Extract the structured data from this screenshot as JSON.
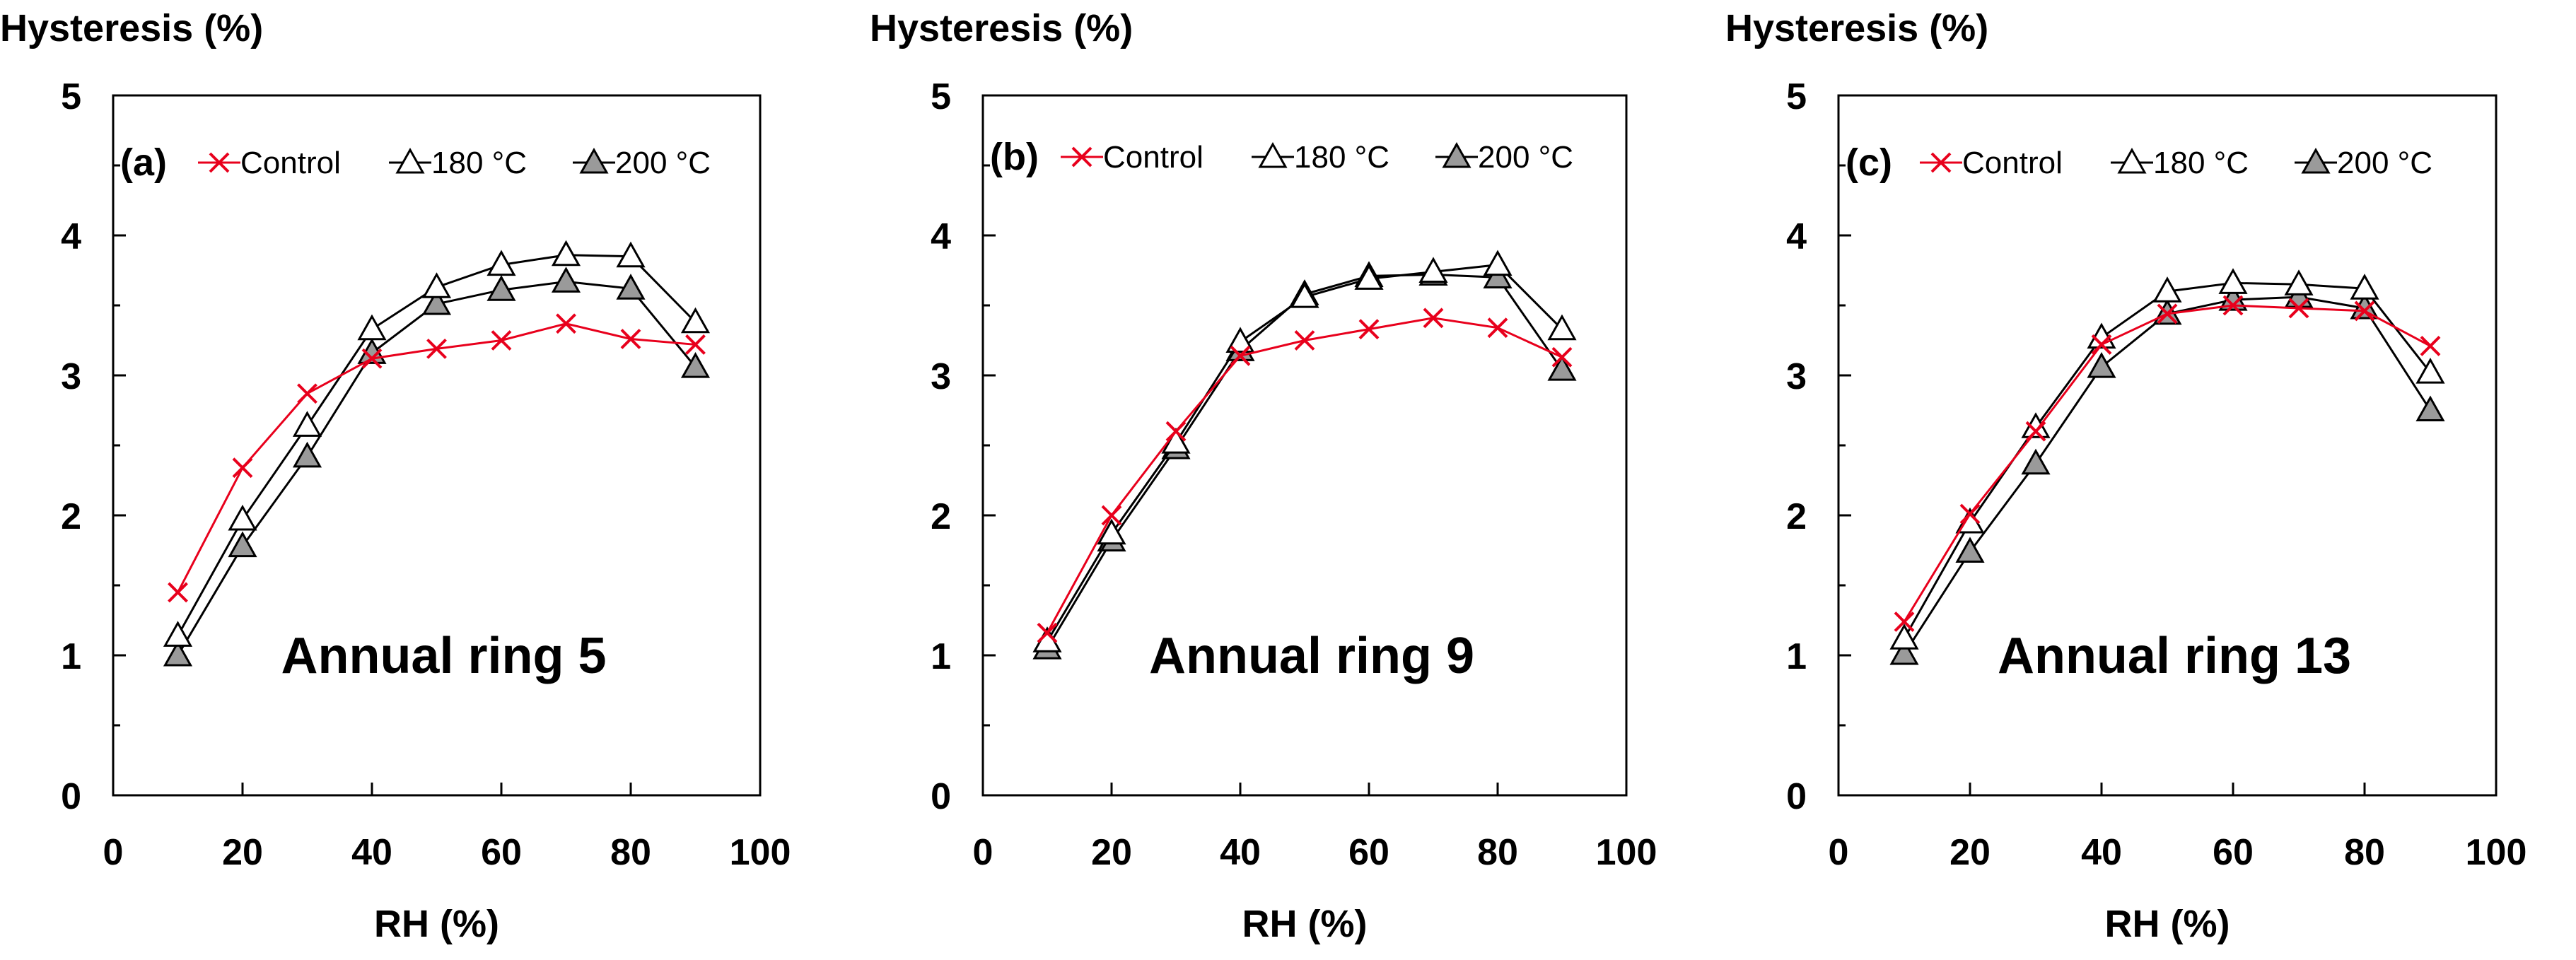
{
  "chart_data": [
    {
      "type": "line",
      "panel_label": "(a)",
      "annotation": "Annual ring 5",
      "ylabel": "Hysteresis (%)",
      "xlabel": "RH (%)",
      "xlim": [
        0,
        100
      ],
      "ylim": [
        0,
        5
      ],
      "xticks": [
        "0",
        "20",
        "40",
        "60",
        "80",
        "100"
      ],
      "yticks": [
        "0",
        "1",
        "2",
        "3",
        "4",
        "5"
      ],
      "x": [
        10,
        20,
        30,
        40,
        50,
        60,
        70,
        80,
        90
      ],
      "series": [
        {
          "name": "Control",
          "color": "#e8001c",
          "marker": "x",
          "values": [
            1.45,
            2.34,
            2.87,
            3.12,
            3.19,
            3.25,
            3.37,
            3.26,
            3.22
          ]
        },
        {
          "name": "180 °C",
          "color": "#000000",
          "marker": "triangle-open",
          "values": [
            1.14,
            1.97,
            2.64,
            3.33,
            3.63,
            3.79,
            3.86,
            3.85,
            3.38
          ]
        },
        {
          "name": "200 °C",
          "color": "#000000",
          "marker": "triangle-gray",
          "values": [
            1.0,
            1.78,
            2.42,
            3.16,
            3.51,
            3.61,
            3.67,
            3.62,
            3.06
          ]
        }
      ]
    },
    {
      "type": "line",
      "panel_label": "(b)",
      "annotation": "Annual ring 9",
      "ylabel": "Hysteresis (%)",
      "xlabel": "RH (%)",
      "xlim": [
        0,
        100
      ],
      "ylim": [
        0,
        5
      ],
      "xticks": [
        "0",
        "20",
        "40",
        "60",
        "80",
        "100"
      ],
      "yticks": [
        "0",
        "1",
        "2",
        "3",
        "4",
        "5"
      ],
      "x": [
        10,
        20,
        30,
        40,
        50,
        60,
        70,
        80,
        90
      ],
      "series": [
        {
          "name": "Control",
          "color": "#e8001c",
          "marker": "x",
          "values": [
            1.16,
            2.0,
            2.6,
            3.14,
            3.25,
            3.33,
            3.41,
            3.34,
            3.13
          ]
        },
        {
          "name": "180 °C",
          "color": "#000000",
          "marker": "triangle-open",
          "values": [
            1.1,
            1.87,
            2.52,
            3.24,
            3.56,
            3.69,
            3.74,
            3.79,
            3.33
          ]
        },
        {
          "name": "200 °C",
          "color": "#000000",
          "marker": "triangle-gray",
          "values": [
            1.05,
            1.82,
            2.48,
            3.18,
            3.58,
            3.71,
            3.72,
            3.7,
            3.04
          ]
        }
      ]
    },
    {
      "type": "line",
      "panel_label": "(c)",
      "annotation": "Annual ring 13",
      "ylabel": "Hysteresis (%)",
      "xlabel": "RH (%)",
      "xlim": [
        0,
        100
      ],
      "ylim": [
        0,
        5
      ],
      "xticks": [
        "0",
        "20",
        "40",
        "60",
        "80",
        "100"
      ],
      "yticks": [
        "0",
        "1",
        "2",
        "3",
        "4",
        "5"
      ],
      "x": [
        10,
        20,
        30,
        40,
        50,
        60,
        70,
        80,
        90
      ],
      "series": [
        {
          "name": "Control",
          "color": "#e8001c",
          "marker": "x",
          "values": [
            1.24,
            2.01,
            2.6,
            3.22,
            3.44,
            3.5,
            3.48,
            3.46,
            3.21
          ]
        },
        {
          "name": "180 °C",
          "color": "#000000",
          "marker": "triangle-open",
          "values": [
            1.12,
            1.95,
            2.63,
            3.27,
            3.6,
            3.66,
            3.65,
            3.62,
            3.02
          ]
        },
        {
          "name": "200 °C",
          "color": "#000000",
          "marker": "triangle-gray",
          "values": [
            1.01,
            1.74,
            2.37,
            3.06,
            3.44,
            3.54,
            3.56,
            3.48,
            2.75
          ]
        }
      ]
    }
  ]
}
